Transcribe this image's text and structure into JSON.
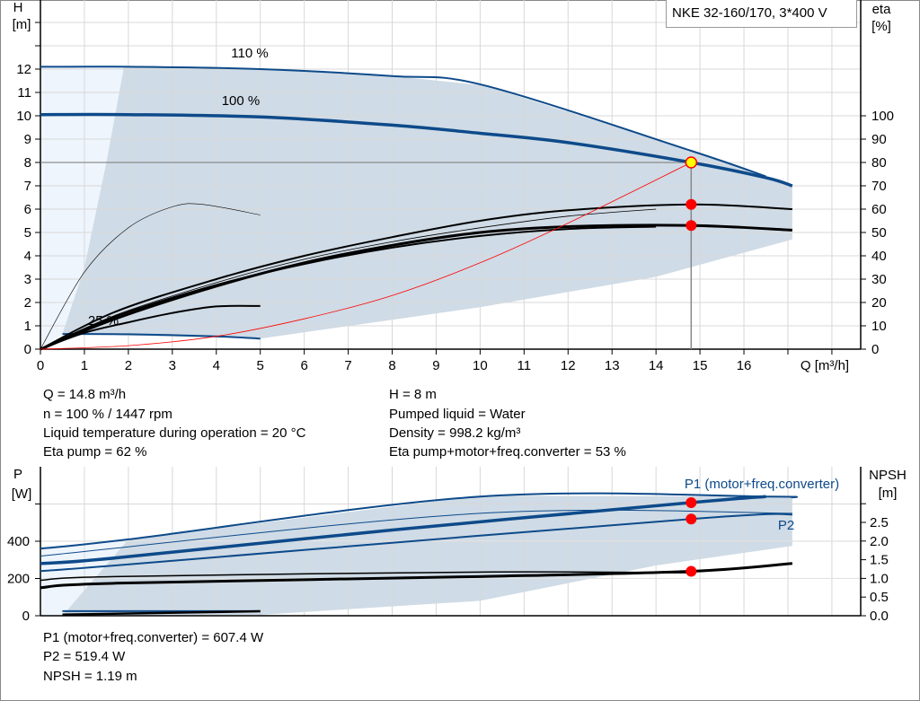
{
  "chart_data": [
    {
      "type": "line",
      "legend_title": "NKE 32-160/170, 3*400 V",
      "xlabel": "Q [m³/h]",
      "ylabel_left": [
        "H",
        "[m]"
      ],
      "ylabel_right": [
        "eta",
        "[%]"
      ],
      "xlim": [
        0,
        18.9
      ],
      "ylim_left": [
        0,
        14.9
      ],
      "ylim_right": [
        0,
        149
      ],
      "x_ticks": [
        "0",
        "1",
        "2",
        "3",
        "4",
        "5",
        "6",
        "7",
        "8",
        "9",
        "10",
        "11",
        "12",
        "13",
        "14",
        "15",
        "16"
      ],
      "y_ticks_left": [
        "0",
        "1",
        "2",
        "3",
        "4",
        "5",
        "6",
        "7",
        "8",
        "9",
        "10",
        "11",
        "12"
      ],
      "y_ticks_right": [
        "0",
        "10",
        "20",
        "30",
        "40",
        "50",
        "60",
        "70",
        "80",
        "90",
        "100"
      ],
      "grid": true,
      "annotations": [
        "110 %",
        "100 %",
        "25 %"
      ],
      "colors": {
        "head": "#0d4a8a",
        "efficiency": "#000000",
        "system": "#ff0000",
        "region": "#cfdbe6",
        "region_light": "#eef5fc",
        "duty_point": "#ffff00"
      },
      "series": [
        {
          "axis": "H",
          "x": [
            0,
            2,
            5,
            8,
            10.1,
            14.8,
            16.5
          ],
          "y": [
            12.1,
            12.1,
            12.0,
            11.7,
            11.3,
            8.5,
            7.4
          ]
        },
        {
          "axis": "H",
          "x": [
            0,
            2,
            5,
            8,
            10,
            12,
            14.8,
            16.5,
            17.1
          ],
          "y": [
            10.05,
            10.05,
            9.95,
            9.6,
            9.25,
            8.85,
            8.0,
            7.35,
            7.0
          ]
        },
        {
          "axis": "H",
          "x": [
            0.5,
            2,
            4,
            5
          ],
          "y": [
            0.65,
            0.64,
            0.55,
            0.45
          ]
        },
        {
          "axis": "eta",
          "x": [
            0,
            1.7,
            4,
            6,
            8,
            10,
            12,
            14.8,
            17.1
          ],
          "y": [
            0,
            16,
            30,
            40,
            48,
            55,
            59.5,
            62,
            60
          ]
        },
        {
          "axis": "eta",
          "x": [
            0,
            1.7,
            4,
            6,
            8,
            10,
            12,
            14.8,
            17.1
          ],
          "y": [
            0,
            13,
            27,
            37,
            44.5,
            50,
            52.5,
            53,
            51
          ]
        },
        {
          "axis": "eta",
          "x": [
            0,
            1.7,
            4,
            6,
            8,
            10,
            12,
            14
          ],
          "y": [
            0,
            14.5,
            28.5,
            38.5,
            46,
            52,
            57,
            60
          ]
        },
        {
          "axis": "eta",
          "x": [
            0,
            1.7,
            4,
            6,
            8,
            10,
            12,
            14
          ],
          "y": [
            0,
            14,
            27.5,
            36.5,
            43.5,
            48.5,
            51.5,
            52.5
          ]
        },
        {
          "axis": "eta",
          "x": [
            0,
            1,
            2,
            3,
            3.7,
            5
          ],
          "y": [
            0,
            33,
            52,
            61,
            62,
            57.5
          ]
        },
        {
          "axis": "eta",
          "x": [
            0,
            1,
            2,
            3,
            4,
            5
          ],
          "y": [
            0,
            7,
            11.5,
            15.5,
            18.3,
            18.5
          ]
        },
        {
          "axis": "H",
          "x": [
            0,
            2,
            4,
            6,
            8,
            10,
            12,
            14.8
          ],
          "y": [
            0,
            0.15,
            0.55,
            1.3,
            2.3,
            3.7,
            5.4,
            8.0
          ]
        }
      ],
      "region": {
        "x": [
          1.9,
          1.5,
          1.0,
          0.5,
          5,
          10,
          14,
          17.1,
          17.1,
          16.5,
          14.8,
          10.1,
          8,
          5
        ],
        "y": [
          12.1,
          8,
          3.5,
          0.65,
          0.45,
          1.8,
          3.1,
          4.7,
          7.0,
          7.4,
          8.5,
          11.3,
          11.7,
          12.0
        ]
      },
      "region_light": {
        "x": [
          0,
          1.9,
          1.5,
          1.0,
          0.5,
          0
        ],
        "y": [
          12.1,
          12.1,
          8,
          3.5,
          0.65,
          0
        ]
      },
      "duty_point": {
        "q": 14.8,
        "h": 8,
        "eta_pump": 62,
        "eta_total": 53
      }
    },
    {
      "type": "line",
      "ylabel_left": [
        "P",
        "[W]"
      ],
      "ylabel_right": [
        "NPSH",
        "[m]"
      ],
      "xlim": [
        0,
        18.9
      ],
      "ylim_left": [
        0,
        800
      ],
      "ylim_right": [
        0,
        4.0
      ],
      "y_ticks_left": [
        "0",
        "200",
        "400"
      ],
      "y_ticks_right": [
        "0.0",
        "0.5",
        "1.0",
        "1.5",
        "2.0",
        "2.5"
      ],
      "series_labels": [
        "P1 (motor+freq.converter)",
        "P2"
      ],
      "series": [
        {
          "axis": "P",
          "x": [
            0,
            2,
            10,
            16.5,
            17.1
          ],
          "y": [
            360,
            410,
            640,
            640,
            635
          ]
        },
        {
          "axis": "P",
          "x": [
            0,
            1.7,
            8,
            14.8,
            16.5
          ],
          "y": [
            280,
            310,
            460,
            607.4,
            640
          ]
        },
        {
          "axis": "P",
          "x": [
            0,
            1.7,
            10,
            14.8,
            16.5,
            17.1
          ],
          "y": [
            240,
            270,
            430,
            519.4,
            545,
            543
          ]
        },
        {
          "axis": "P",
          "x": [
            0,
            10,
            17.1
          ],
          "y": [
            320,
            550,
            550
          ]
        },
        {
          "axis": "NPSH",
          "x": [
            0,
            1.7,
            10,
            14.8,
            17.1
          ],
          "y": [
            0.75,
            0.87,
            1.05,
            1.19,
            1.4
          ]
        },
        {
          "axis": "NPSH",
          "x": [
            0,
            1.7,
            10,
            14.8
          ],
          "y": [
            0.95,
            1.05,
            1.17,
            1.15
          ]
        },
        {
          "axis": "P",
          "x": [
            0.5,
            5
          ],
          "y": [
            25,
            25
          ]
        },
        {
          "axis": "NPSH",
          "x": [
            0.5,
            5
          ],
          "y": [
            0.03,
            0.12
          ]
        }
      ],
      "region": {
        "x": [
          2,
          10,
          17.1,
          17.1,
          14,
          10,
          5,
          0.5
        ],
        "y": [
          410,
          645,
          640,
          375,
          270,
          80,
          5,
          0
        ]
      },
      "region_light": {
        "x": [
          0,
          2,
          1.5,
          0.5,
          0
        ],
        "y": [
          370,
          410,
          160,
          0,
          0
        ]
      },
      "duty_point": {
        "p1": 607.4,
        "p2": 519.4,
        "npsh": 1.19
      }
    }
  ],
  "info_top": {
    "left": [
      "Q = 14.8 m³/h",
      "n = 100 % / 1447 rpm",
      "Liquid temperature during operation = 20 °C",
      "Eta pump = 62 %"
    ],
    "right": [
      "H = 8 m",
      "Pumped liquid = Water",
      "Density = 998.2 kg/m³",
      "Eta pump+motor+freq.converter = 53 %"
    ]
  },
  "info_bottom": [
    "P1 (motor+freq.converter) = 607.4 W",
    "P2 = 519.4 W",
    "NPSH = 1.19 m"
  ]
}
